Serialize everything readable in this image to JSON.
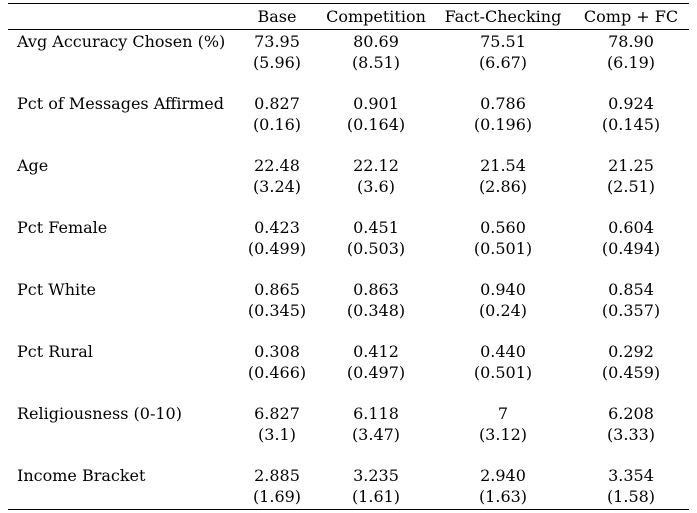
{
  "columns": [
    "Base",
    "Competition",
    "Fact-Checking",
    "Comp + FC"
  ],
  "rows": [
    {
      "label": "Avg Accuracy Chosen (%)",
      "means": [
        "73.95",
        "80.69",
        "75.51",
        "78.90"
      ],
      "sds": [
        "(5.96)",
        "(8.51)",
        "(6.67)",
        "(6.19)"
      ]
    },
    {
      "label": "Pct of Messages Affirmed",
      "means": [
        "0.827",
        "0.901",
        "0.786",
        "0.924"
      ],
      "sds": [
        "(0.16)",
        "(0.164)",
        "(0.196)",
        "(0.145)"
      ]
    },
    {
      "label": "Age",
      "means": [
        "22.48",
        "22.12",
        "21.54",
        "21.25"
      ],
      "sds": [
        "(3.24)",
        "(3.6)",
        "(2.86)",
        "(2.51)"
      ]
    },
    {
      "label": "Pct Female",
      "means": [
        "0.423",
        "0.451",
        "0.560",
        "0.604"
      ],
      "sds": [
        "(0.499)",
        "(0.503)",
        "(0.501)",
        "(0.494)"
      ]
    },
    {
      "label": "Pct White",
      "means": [
        "0.865",
        "0.863",
        "0.940",
        "0.854"
      ],
      "sds": [
        "(0.345)",
        "(0.348)",
        "(0.24)",
        "(0.357)"
      ]
    },
    {
      "label": "Pct Rural",
      "means": [
        "0.308",
        "0.412",
        "0.440",
        "0.292"
      ],
      "sds": [
        "(0.466)",
        "(0.497)",
        "(0.501)",
        "(0.459)"
      ]
    },
    {
      "label": "Religiousness (0-10)",
      "means": [
        "6.827",
        "6.118",
        "7",
        "6.208"
      ],
      "sds": [
        "(3.1)",
        "(3.47)",
        "(3.12)",
        "(3.33)"
      ]
    },
    {
      "label": "Income Bracket",
      "means": [
        "2.885",
        "3.235",
        "2.940",
        "3.354"
      ],
      "sds": [
        "(1.69)",
        "(1.61)",
        "(1.63)",
        "(1.58)"
      ]
    }
  ]
}
